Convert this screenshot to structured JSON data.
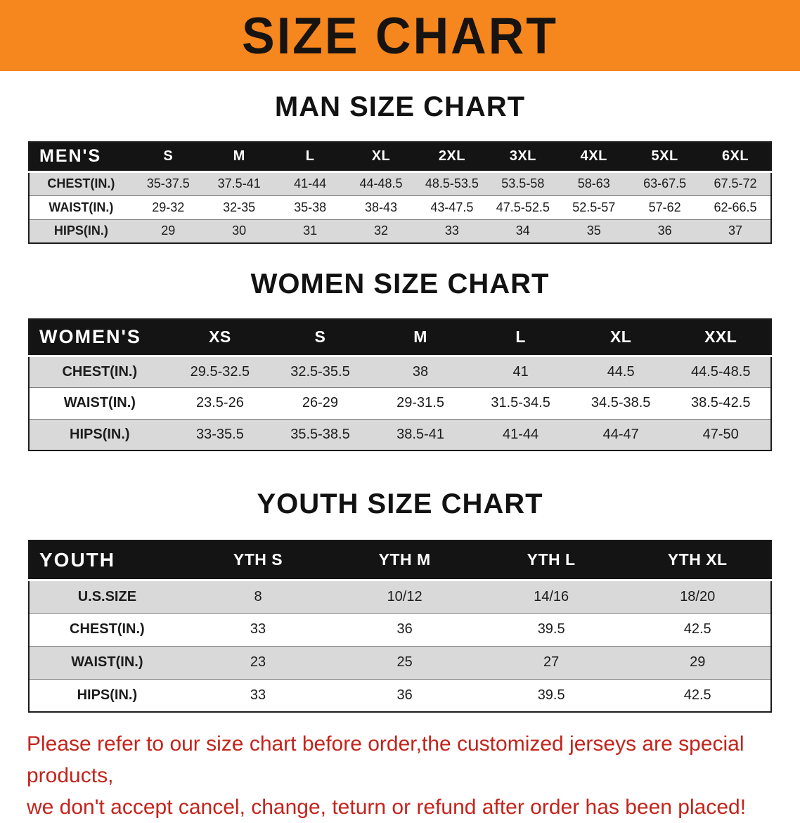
{
  "banner": {
    "title": "SIZE CHART",
    "bg_color": "#f6861e",
    "text_color": "#171310"
  },
  "sections": [
    {
      "id": "men",
      "heading": "MAN SIZE CHART",
      "table": {
        "header": [
          "MEN'S",
          "S",
          "M",
          "L",
          "XL",
          "2XL",
          "3XL",
          "4XL",
          "5XL",
          "6XL"
        ],
        "rows": [
          {
            "label": "CHEST(IN.)",
            "values": [
              "35-37.5",
              "37.5-41",
              "41-44",
              "44-48.5",
              "48.5-53.5",
              "53.5-58",
              "58-63",
              "63-67.5",
              "67.5-72"
            ]
          },
          {
            "label": "WAIST(IN.)",
            "values": [
              "29-32",
              "32-35",
              "35-38",
              "38-43",
              "43-47.5",
              "47.5-52.5",
              "52.5-57",
              "57-62",
              "62-66.5"
            ]
          },
          {
            "label": "HIPS(IN.)",
            "values": [
              "29",
              "30",
              "31",
              "32",
              "33",
              "34",
              "35",
              "36",
              "37"
            ]
          }
        ]
      }
    },
    {
      "id": "women",
      "heading": "WOMEN SIZE CHART",
      "table": {
        "header": [
          "WOMEN'S",
          "XS",
          "S",
          "M",
          "L",
          "XL",
          "XXL"
        ],
        "rows": [
          {
            "label": "CHEST(IN.)",
            "values": [
              "29.5-32.5",
              "32.5-35.5",
              "38",
              "41",
              "44.5",
              "44.5-48.5"
            ]
          },
          {
            "label": "WAIST(IN.)",
            "values": [
              "23.5-26",
              "26-29",
              "29-31.5",
              "31.5-34.5",
              "34.5-38.5",
              "38.5-42.5"
            ]
          },
          {
            "label": "HIPS(IN.)",
            "values": [
              "33-35.5",
              "35.5-38.5",
              "38.5-41",
              "41-44",
              "44-47",
              "47-50"
            ]
          }
        ]
      }
    },
    {
      "id": "youth",
      "heading": "YOUTH SIZE CHART",
      "table": {
        "header": [
          "YOUTH",
          "YTH S",
          "YTH M",
          "YTH L",
          "YTH XL"
        ],
        "rows": [
          {
            "label": "U.S.SIZE",
            "values": [
              "8",
              "10/12",
              "14/16",
              "18/20"
            ]
          },
          {
            "label": "CHEST(IN.)",
            "values": [
              "33",
              "36",
              "39.5",
              "42.5"
            ]
          },
          {
            "label": "WAIST(IN.)",
            "values": [
              "23",
              "25",
              "27",
              "29"
            ]
          },
          {
            "label": "HIPS(IN.)",
            "values": [
              "33",
              "36",
              "39.5",
              "42.5"
            ]
          }
        ]
      }
    }
  ],
  "footer": {
    "line1": "Please refer to our size chart before order,the customized jerseys are special products,",
    "line2": "we don't accept cancel, change, teturn or refund after order has been placed!",
    "text_color": "#c3241c"
  }
}
